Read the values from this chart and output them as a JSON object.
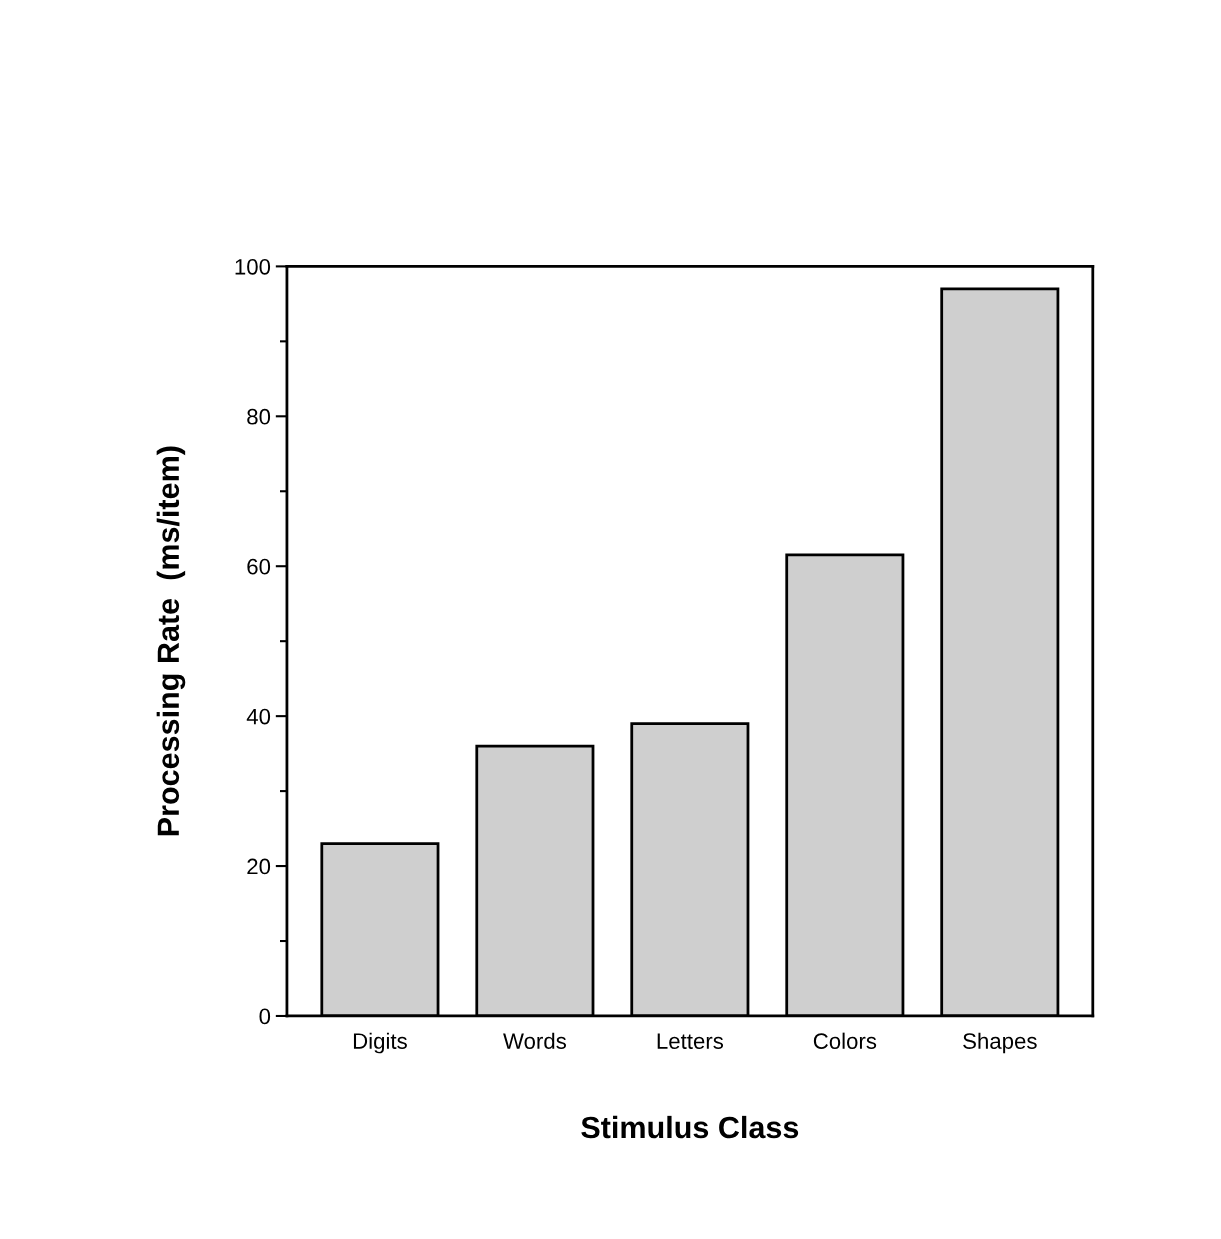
{
  "chart_data": {
    "type": "bar",
    "xlabel": "Stimulus Class",
    "ylabel": "Processing Rate  (ms/item)",
    "categories": [
      "Digits",
      "Words",
      "Letters",
      "Colors",
      "Shapes"
    ],
    "values": [
      23,
      36,
      39,
      61.5,
      97
    ],
    "color": "#cfcfcf",
    "ylim": [
      0,
      100
    ],
    "yticks": [
      0,
      20,
      40,
      60,
      80,
      100
    ],
    "grid": false
  }
}
